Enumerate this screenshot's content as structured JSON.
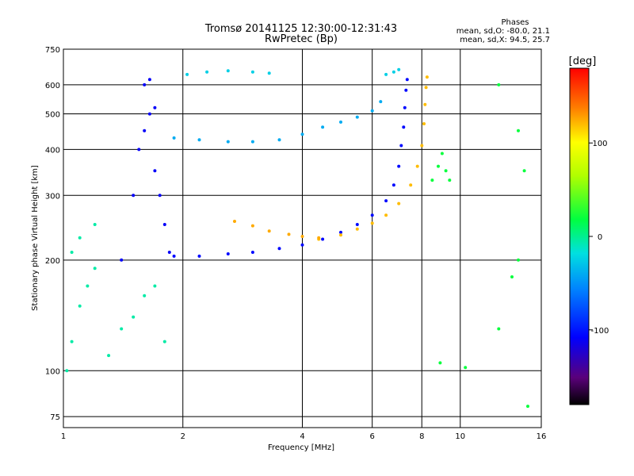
{
  "chart_data": {
    "type": "scatter",
    "title": "Tromsø 20141125 12:30:00-12:31:43",
    "subtitle": "RwPretec (Bp)",
    "xlabel": "Frequency [MHz]",
    "ylabel": "Stationary phase Virtual Height [km]",
    "x_scale": "log",
    "y_scale": "log",
    "xlim": [
      1,
      16
    ],
    "ylim": [
      70,
      750
    ],
    "x_ticks": [
      1,
      2,
      4,
      6,
      8,
      10,
      16
    ],
    "x_tick_labels": [
      "1",
      "2",
      "4",
      "6",
      "8",
      "10",
      "16"
    ],
    "y_ticks": [
      75,
      100,
      200,
      300,
      400,
      500,
      600,
      750
    ],
    "y_tick_labels": [
      "75",
      "100",
      "200",
      "300",
      "400",
      "500",
      "600",
      "750"
    ],
    "grid": true,
    "phase_stats": {
      "header": "Phases",
      "line_o": "mean, sd,O: -80.0, 21.1",
      "line_x": "mean, sd,X:  94.5, 25.7"
    },
    "colorbar": {
      "label": "[deg]",
      "min": -180,
      "max": 180,
      "ticks": [
        100,
        0,
        -100
      ],
      "tick_labels": [
        "100",
        "0",
        "-100"
      ]
    },
    "traces": [
      {
        "name": "scatter_low",
        "points": [
          [
            1.02,
            100
          ],
          [
            1.05,
            120
          ],
          [
            1.1,
            150
          ],
          [
            1.15,
            170
          ],
          [
            1.2,
            190
          ],
          [
            1.05,
            210
          ],
          [
            1.1,
            230
          ],
          [
            1.2,
            250
          ],
          [
            1.3,
            110
          ],
          [
            1.4,
            130
          ],
          [
            1.5,
            140
          ],
          [
            1.6,
            160
          ],
          [
            1.7,
            170
          ],
          [
            1.8,
            120
          ]
        ],
        "phase": -5
      },
      {
        "name": "low_band",
        "points": [
          [
            1.4,
            200
          ],
          [
            1.5,
            300
          ],
          [
            1.55,
            400
          ],
          [
            1.6,
            450
          ],
          [
            1.65,
            500
          ],
          [
            1.7,
            520
          ],
          [
            1.6,
            600
          ],
          [
            1.65,
            620
          ],
          [
            1.7,
            350
          ],
          [
            1.75,
            300
          ],
          [
            1.8,
            250
          ],
          [
            1.85,
            210
          ]
        ],
        "phase": -110
      },
      {
        "name": "F_trace_O",
        "points": [
          [
            1.9,
            205
          ],
          [
            2.2,
            205
          ],
          [
            2.6,
            208
          ],
          [
            3.0,
            210
          ],
          [
            3.5,
            215
          ],
          [
            4.0,
            220
          ],
          [
            4.5,
            228
          ],
          [
            5.0,
            238
          ],
          [
            5.5,
            250
          ],
          [
            6.0,
            265
          ],
          [
            6.5,
            290
          ],
          [
            6.8,
            320
          ],
          [
            7.0,
            360
          ],
          [
            7.1,
            410
          ],
          [
            7.2,
            460
          ],
          [
            7.25,
            520
          ],
          [
            7.3,
            580
          ],
          [
            7.35,
            620
          ]
        ],
        "phase": -105
      },
      {
        "name": "F_trace_X",
        "points": [
          [
            4.4,
            228
          ],
          [
            5.0,
            234
          ],
          [
            5.5,
            243
          ],
          [
            6.0,
            252
          ],
          [
            6.5,
            265
          ],
          [
            7.0,
            285
          ],
          [
            7.5,
            320
          ],
          [
            7.8,
            360
          ],
          [
            8.0,
            410
          ],
          [
            8.1,
            470
          ],
          [
            8.15,
            530
          ],
          [
            8.2,
            590
          ],
          [
            8.25,
            630
          ]
        ],
        "phase": 120
      },
      {
        "name": "F_low_arc",
        "points": [
          [
            2.7,
            255
          ],
          [
            3.0,
            248
          ],
          [
            3.3,
            240
          ],
          [
            3.7,
            235
          ],
          [
            4.0,
            232
          ],
          [
            4.4,
            230
          ]
        ],
        "phase": 125
      },
      {
        "name": "upper_trace",
        "points": [
          [
            1.9,
            430
          ],
          [
            2.2,
            425
          ],
          [
            2.6,
            420
          ],
          [
            3.0,
            420
          ],
          [
            3.5,
            425
          ],
          [
            4.0,
            440
          ],
          [
            4.5,
            460
          ],
          [
            5.0,
            475
          ],
          [
            5.5,
            490
          ],
          [
            6.0,
            510
          ],
          [
            6.3,
            540
          ]
        ],
        "phase": -40
      },
      {
        "name": "top_scatter",
        "points": [
          [
            2.05,
            640
          ],
          [
            2.3,
            650
          ],
          [
            2.6,
            655
          ],
          [
            3.0,
            650
          ],
          [
            3.3,
            645
          ],
          [
            6.5,
            640
          ],
          [
            6.8,
            650
          ],
          [
            7.0,
            660
          ]
        ],
        "phase": -25
      },
      {
        "name": "right_scatter",
        "points": [
          [
            8.5,
            330
          ],
          [
            8.8,
            360
          ],
          [
            9.0,
            390
          ],
          [
            9.2,
            350
          ],
          [
            9.4,
            330
          ],
          [
            12.5,
            600
          ],
          [
            14.0,
            450
          ],
          [
            14.5,
            350
          ],
          [
            14.0,
            200
          ],
          [
            13.5,
            180
          ],
          [
            12.5,
            130
          ],
          [
            8.9,
            105
          ],
          [
            10.3,
            102
          ],
          [
            14.8,
            80
          ]
        ],
        "phase": 20
      }
    ]
  }
}
